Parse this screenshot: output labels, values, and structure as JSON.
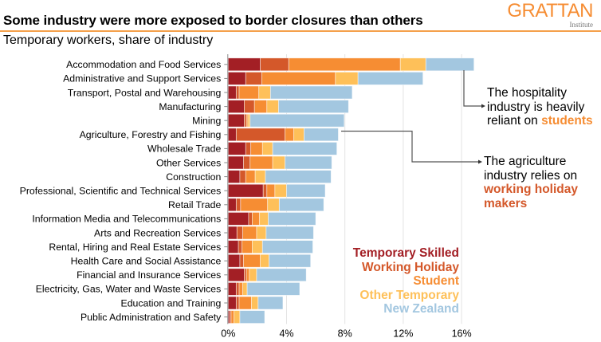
{
  "header": {
    "title": "Some industry were more exposed to border closures than others",
    "subtitle": "Temporary workers, share of industry",
    "logo_main": "GRATTAN",
    "logo_sub": "Institute"
  },
  "colors": {
    "temporary_skilled": "#a31f25",
    "working_holiday": "#d4582a",
    "student": "#f68d33",
    "other_temporary": "#fec059",
    "new_zealand": "#a3c7e0",
    "brand_orange": "#f68d33"
  },
  "annotations": {
    "hospitality": {
      "line1": "The hospitality",
      "line2": "industry is heavily",
      "line3_prefix": "reliant on ",
      "highlight": "students"
    },
    "agriculture": {
      "line1": "The agriculture",
      "line2": "industry relies on",
      "highlight1": "working holiday",
      "highlight2": "makers"
    }
  },
  "chart_data": {
    "type": "bar",
    "orientation": "horizontal",
    "stacked": true,
    "title": "Some industry were more exposed to border closures than others",
    "subtitle": "Temporary workers, share of industry",
    "xlabel": "",
    "ylabel": "",
    "xlim": [
      0,
      17
    ],
    "xticks": [
      0,
      4,
      8,
      12,
      16
    ],
    "xtick_labels": [
      "0%",
      "4%",
      "8%",
      "12%",
      "16%"
    ],
    "grid": "vertical",
    "legend_position": "bottom-right",
    "categories": [
      "Accommodation and Food Services",
      "Administrative and Support Services",
      "Transport, Postal and Warehousing",
      "Manufacturing",
      "Mining",
      "Agriculture, Forestry and Fishing",
      "Wholesale Trade",
      "Other Services",
      "Construction",
      "Professional, Scientific and Technical Services",
      "Retail Trade",
      "Information Media and Telecommunications",
      "Arts and Recreation Services",
      "Rental, Hiring and Real Estate Services",
      "Health Care and Social Assistance",
      "Financial and Insurance Services",
      "Electricity, Gas, Water and Waste Services",
      "Education and Training",
      "Public Administration and Safety"
    ],
    "series": [
      {
        "name": "Temporary Skilled",
        "key": "temporary_skilled",
        "values": [
          2.2,
          1.2,
          0.55,
          1.1,
          1.1,
          0.55,
          1.2,
          1.05,
          0.8,
          2.4,
          0.55,
          1.4,
          0.6,
          0.7,
          0.8,
          1.1,
          0.55,
          0.55,
          0.1
        ]
      },
      {
        "name": "Working Holiday",
        "key": "working_holiday",
        "values": [
          1.95,
          1.1,
          0.2,
          0.7,
          0.15,
          3.35,
          0.35,
          0.45,
          0.4,
          0.25,
          0.3,
          0.25,
          0.4,
          0.25,
          0.25,
          0.15,
          0.2,
          0.2,
          0.1
        ]
      },
      {
        "name": "Student",
        "key": "student",
        "values": [
          7.65,
          5.05,
          1.35,
          0.85,
          0.1,
          0.6,
          0.8,
          1.55,
          0.65,
          0.55,
          1.85,
          0.5,
          0.95,
          0.7,
          1.15,
          0.2,
          0.25,
          0.85,
          0.2
        ]
      },
      {
        "name": "Other Temporary",
        "key": "other_temporary",
        "values": [
          1.75,
          1.55,
          0.8,
          0.8,
          0.15,
          0.7,
          0.7,
          0.85,
          0.7,
          0.8,
          0.8,
          0.6,
          0.65,
          0.7,
          0.6,
          0.5,
          0.3,
          0.45,
          0.4
        ]
      },
      {
        "name": "New Zealand",
        "key": "new_zealand",
        "values": [
          3.3,
          4.45,
          5.6,
          4.8,
          6.45,
          2.35,
          4.4,
          3.2,
          4.5,
          2.65,
          3.05,
          3.25,
          3.25,
          3.45,
          2.85,
          3.4,
          3.6,
          1.7,
          1.7
        ]
      }
    ]
  }
}
